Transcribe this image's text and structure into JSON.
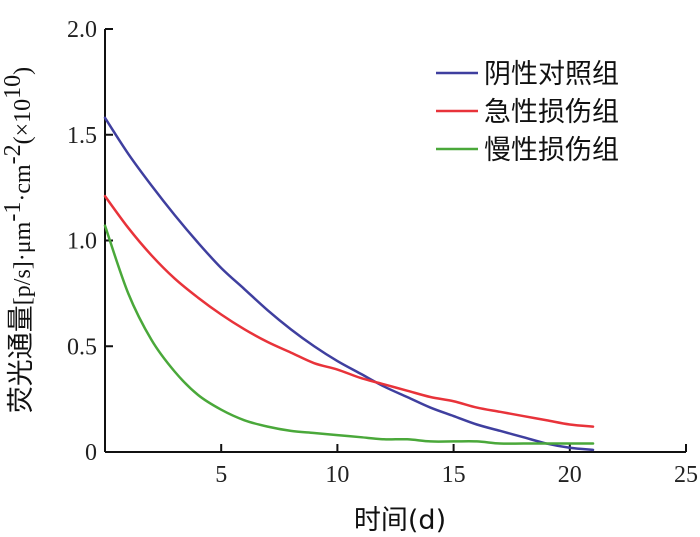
{
  "chart_data": {
    "type": "line",
    "xlabel": "时间(d)",
    "ylabel": {
      "prefix": "荧光通量",
      "unit": "[p/s]·μm",
      "exp1": "-1",
      "mid": "·cm",
      "exp2": "-2",
      "scale_open": "(×10",
      "scale_exp": "10",
      "scale_close": ")"
    },
    "xlim": [
      0,
      25
    ],
    "ylim": [
      0,
      2.0
    ],
    "xticks": [
      5,
      10,
      15,
      20,
      25
    ],
    "xtick_labels": [
      "5",
      "10",
      "15",
      "20",
      "25"
    ],
    "yticks": [
      0,
      0.5,
      1.0,
      1.5,
      2.0
    ],
    "ytick_labels": [
      "0",
      "0.5",
      "1.0",
      "1.5",
      "2.0"
    ],
    "grid": false,
    "legend_position": "top-right",
    "x": [
      0,
      1,
      2,
      3,
      4,
      5,
      6,
      7,
      8,
      9,
      10,
      11,
      12,
      13,
      14,
      15,
      16,
      17,
      18,
      19,
      20,
      21
    ],
    "series": [
      {
        "name": "阴性对照组",
        "color": "#3f3f9f",
        "values": [
          1.58,
          1.41,
          1.26,
          1.12,
          0.99,
          0.87,
          0.77,
          0.67,
          0.58,
          0.5,
          0.43,
          0.37,
          0.31,
          0.26,
          0.21,
          0.17,
          0.13,
          0.1,
          0.07,
          0.04,
          0.02,
          0.01
        ]
      },
      {
        "name": "急性损伤组",
        "color": "#e8333a",
        "values": [
          1.21,
          1.06,
          0.93,
          0.82,
          0.73,
          0.65,
          0.58,
          0.52,
          0.47,
          0.42,
          0.39,
          0.35,
          0.32,
          0.29,
          0.26,
          0.24,
          0.21,
          0.19,
          0.17,
          0.15,
          0.13,
          0.12
        ]
      },
      {
        "name": "慢性损伤组",
        "color": "#4aa83a",
        "values": [
          1.07,
          0.75,
          0.53,
          0.38,
          0.27,
          0.2,
          0.15,
          0.12,
          0.1,
          0.09,
          0.08,
          0.07,
          0.06,
          0.06,
          0.05,
          0.05,
          0.05,
          0.04,
          0.04,
          0.04,
          0.04,
          0.04
        ]
      }
    ]
  }
}
